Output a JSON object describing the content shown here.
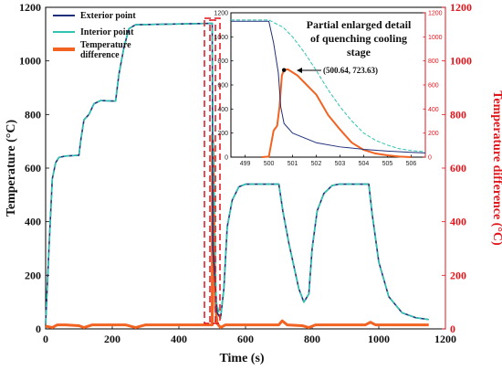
{
  "chart_data": [
    {
      "type": "line",
      "xlabel": "Time (s)",
      "ylabel": "Temperature (°C)",
      "y2label": "Temperature difference (°C)",
      "xlim": [
        0,
        1200
      ],
      "ylim": [
        0,
        1200
      ],
      "y2lim": [
        0,
        1200
      ],
      "xticks": [
        "0",
        "200",
        "400",
        "600",
        "800",
        "1000",
        "1200"
      ],
      "yticks": [
        "0",
        "200",
        "400",
        "600",
        "800",
        "1000",
        "1200"
      ],
      "y2ticks": [
        "0",
        "200",
        "400",
        "600",
        "800",
        "1000",
        "1200"
      ],
      "legend_position": "top-left",
      "series": [
        {
          "name": "Exterior point",
          "color": "#1f2f7a",
          "style": "solid",
          "axis": "left",
          "points": [
            [
              0,
              20
            ],
            [
              10,
              300
            ],
            [
              20,
              560
            ],
            [
              30,
              620
            ],
            [
              40,
              640
            ],
            [
              60,
              645
            ],
            [
              100,
              648
            ],
            [
              105,
              700
            ],
            [
              115,
              780
            ],
            [
              130,
              800
            ],
            [
              145,
              840
            ],
            [
              165,
              852
            ],
            [
              210,
              850
            ],
            [
              220,
              950
            ],
            [
              235,
              1050
            ],
            [
              250,
              1120
            ],
            [
              270,
              1135
            ],
            [
              500,
              1140
            ],
            [
              502,
              300
            ],
            [
              515,
              60
            ],
            [
              525,
              40
            ],
            [
              535,
              150
            ],
            [
              545,
              380
            ],
            [
              560,
              480
            ],
            [
              580,
              530
            ],
            [
              600,
              540
            ],
            [
              700,
              540
            ],
            [
              712,
              440
            ],
            [
              730,
              320
            ],
            [
              760,
              150
            ],
            [
              775,
              100
            ],
            [
              790,
              130
            ],
            [
              800,
              300
            ],
            [
              815,
              440
            ],
            [
              835,
              505
            ],
            [
              860,
              535
            ],
            [
              880,
              540
            ],
            [
              970,
              540
            ],
            [
              980,
              430
            ],
            [
              1000,
              250
            ],
            [
              1030,
              120
            ],
            [
              1070,
              60
            ],
            [
              1110,
              42
            ],
            [
              1150,
              35
            ]
          ]
        },
        {
          "name": "Interior point",
          "color": "#2fc3b0",
          "style": "dashed",
          "axis": "left",
          "points": [
            [
              0,
              20
            ],
            [
              10,
              300
            ],
            [
              20,
              560
            ],
            [
              30,
              620
            ],
            [
              40,
              640
            ],
            [
              60,
              645
            ],
            [
              100,
              648
            ],
            [
              105,
              700
            ],
            [
              115,
              780
            ],
            [
              130,
              800
            ],
            [
              145,
              840
            ],
            [
              165,
              852
            ],
            [
              210,
              850
            ],
            [
              220,
              950
            ],
            [
              235,
              1050
            ],
            [
              250,
              1120
            ],
            [
              270,
              1135
            ],
            [
              500,
              1140
            ],
            [
              503,
              700
            ],
            [
              512,
              100
            ],
            [
              525,
              40
            ],
            [
              535,
              150
            ],
            [
              545,
              380
            ],
            [
              560,
              480
            ],
            [
              580,
              530
            ],
            [
              600,
              540
            ],
            [
              700,
              540
            ],
            [
              712,
              440
            ],
            [
              730,
              320
            ],
            [
              760,
              150
            ],
            [
              775,
              100
            ],
            [
              790,
              130
            ],
            [
              800,
              300
            ],
            [
              815,
              440
            ],
            [
              835,
              505
            ],
            [
              860,
              535
            ],
            [
              880,
              540
            ],
            [
              970,
              540
            ],
            [
              980,
              430
            ],
            [
              1000,
              250
            ],
            [
              1030,
              120
            ],
            [
              1070,
              60
            ],
            [
              1110,
              42
            ],
            [
              1150,
              35
            ]
          ]
        },
        {
          "name": "Temperature difference",
          "color": "#f26322",
          "style": "solid",
          "axis": "right",
          "points": [
            [
              0,
              10
            ],
            [
              20,
              5
            ],
            [
              35,
              15
            ],
            [
              60,
              15
            ],
            [
              100,
              12
            ],
            [
              115,
              5
            ],
            [
              140,
              15
            ],
            [
              200,
              15
            ],
            [
              240,
              15
            ],
            [
              270,
              5
            ],
            [
              300,
              15
            ],
            [
              480,
              15
            ],
            [
              500,
              15
            ],
            [
              501,
              724
            ],
            [
              503,
              650
            ],
            [
              506,
              300
            ],
            [
              510,
              80
            ],
            [
              515,
              20
            ],
            [
              525,
              5
            ],
            [
              540,
              15
            ],
            [
              700,
              15
            ],
            [
              710,
              30
            ],
            [
              725,
              15
            ],
            [
              770,
              12
            ],
            [
              790,
              5
            ],
            [
              810,
              15
            ],
            [
              960,
              15
            ],
            [
              975,
              25
            ],
            [
              990,
              15
            ],
            [
              1150,
              15
            ]
          ]
        }
      ]
    },
    {
      "type": "line",
      "title": "Partial enlarged detail of quenching cooling stage",
      "xlim": [
        498.4,
        506.6
      ],
      "ylim": [
        0,
        1200
      ],
      "y2lim": [
        0,
        1200
      ],
      "xticks": [
        "499",
        "500",
        "501",
        "502",
        "503",
        "504",
        "505",
        "506"
      ],
      "yticks": [
        "0",
        "200",
        "400",
        "600",
        "800",
        "1000",
        "1200"
      ],
      "y2ticks": [
        "0",
        "200",
        "400",
        "600",
        "800",
        "1000",
        "1200"
      ],
      "annotation": {
        "text": "(500.64, 723.63)",
        "x": 500.64,
        "y": 723.63
      },
      "series": [
        {
          "name": "Exterior point",
          "color": "#1f2f7a",
          "style": "solid",
          "axis": "left",
          "points": [
            [
              498.4,
              1130
            ],
            [
              500,
              1130
            ],
            [
              500.2,
              950
            ],
            [
              500.4,
              700
            ],
            [
              500.5,
              420
            ],
            [
              500.64,
              280
            ],
            [
              501,
              200
            ],
            [
              501.5,
              160
            ],
            [
              502,
              120
            ],
            [
              503,
              85
            ],
            [
              504,
              65
            ],
            [
              505,
              50
            ],
            [
              506,
              40
            ],
            [
              506.6,
              35
            ]
          ]
        },
        {
          "name": "Interior point",
          "color": "#2fc3b0",
          "style": "dashed",
          "axis": "left",
          "points": [
            [
              498.4,
              1140
            ],
            [
              500,
              1140
            ],
            [
              500.6,
              1080
            ],
            [
              501,
              1000
            ],
            [
              501.5,
              870
            ],
            [
              502,
              720
            ],
            [
              502.5,
              560
            ],
            [
              503,
              420
            ],
            [
              503.5,
              300
            ],
            [
              504,
              200
            ],
            [
              504.5,
              140
            ],
            [
              505,
              100
            ],
            [
              505.5,
              70
            ],
            [
              506,
              55
            ],
            [
              506.6,
              45
            ]
          ]
        },
        {
          "name": "Temperature difference",
          "color": "#f26322",
          "style": "solid",
          "axis": "right",
          "points": [
            [
              499.7,
              0
            ],
            [
              500,
              5
            ],
            [
              500.2,
              220
            ],
            [
              500.35,
              260
            ],
            [
              500.45,
              420
            ],
            [
              500.55,
              680
            ],
            [
              500.64,
              724
            ],
            [
              500.8,
              730
            ],
            [
              501.2,
              680
            ],
            [
              501.5,
              620
            ],
            [
              502,
              520
            ],
            [
              502.5,
              350
            ],
            [
              503,
              230
            ],
            [
              503.5,
              120
            ],
            [
              504,
              60
            ],
            [
              504.5,
              30
            ],
            [
              505,
              15
            ],
            [
              505.5,
              5
            ],
            [
              506,
              0
            ]
          ]
        }
      ]
    }
  ]
}
